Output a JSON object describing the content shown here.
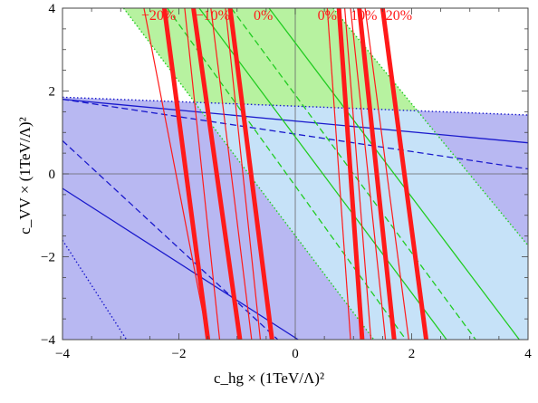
{
  "chart_data": {
    "type": "line",
    "xlabel": "c_hg × (1TeV/Λ)²",
    "ylabel": "c_VV × (1TeV/Λ)²",
    "xlim": [
      -4,
      4
    ],
    "ylim": [
      -4,
      4
    ],
    "x_ticks": [
      -4,
      -2,
      0,
      2,
      4
    ],
    "y_ticks": [
      -4,
      -2,
      0,
      2,
      4
    ],
    "x_tick_labels": [
      "−4",
      "−2",
      "0",
      "2",
      "4"
    ],
    "y_tick_labels": [
      "−4",
      "−2",
      "0",
      "2",
      "4"
    ],
    "grid": "axes-through-origin",
    "colors": {
      "green_band": "#b7f2a0",
      "blue_band": "#b8b8f2",
      "overlap": "#c6e2f8",
      "green_line": "#22cc22",
      "blue_line": "#1a1acc",
      "red_line": "#ff1a1a"
    },
    "regions": [
      {
        "color": "blue",
        "polygon": [
          [
            -4,
            1.85
          ],
          [
            4,
            1.42
          ],
          [
            4,
            -4
          ],
          [
            -4,
            -4
          ]
        ]
      },
      {
        "color": "green",
        "polygon": [
          [
            -2.95,
            4
          ],
          [
            0.65,
            4
          ],
          [
            4,
            -1.73
          ],
          [
            4,
            -4
          ],
          [
            1.35,
            -4
          ]
        ]
      }
    ],
    "series": [
      {
        "color": "blue",
        "style": "solid",
        "points": [
          [
            -4,
            1.8
          ],
          [
            4,
            0.75
          ]
        ]
      },
      {
        "color": "blue",
        "style": "dashed",
        "points": [
          [
            -4,
            1.8
          ],
          [
            4,
            0.12
          ]
        ]
      },
      {
        "color": "blue",
        "style": "dashed",
        "points": [
          [
            -4,
            0.8
          ],
          [
            -0.3,
            -4
          ]
        ]
      },
      {
        "color": "blue",
        "style": "solid",
        "points": [
          [
            -4,
            -0.35
          ],
          [
            0.05,
            -4
          ]
        ]
      },
      {
        "color": "blue",
        "style": "dotted",
        "points": [
          [
            -4,
            1.85
          ],
          [
            4,
            1.42
          ]
        ]
      },
      {
        "color": "blue",
        "style": "dotted",
        "points": [
          [
            -4,
            -1.6
          ],
          [
            -2.9,
            -4
          ]
        ]
      },
      {
        "color": "green",
        "style": "dotted",
        "points": [
          [
            -2.95,
            4
          ],
          [
            1.35,
            -4
          ]
        ]
      },
      {
        "color": "green",
        "style": "dotted",
        "points": [
          [
            0.65,
            4
          ],
          [
            4,
            -1.73
          ]
        ]
      },
      {
        "color": "green",
        "style": "solid",
        "points": [
          [
            -1.65,
            4
          ],
          [
            2.6,
            -4
          ]
        ]
      },
      {
        "color": "green",
        "style": "solid",
        "points": [
          [
            -0.45,
            4
          ],
          [
            3.85,
            -4
          ]
        ]
      },
      {
        "color": "green",
        "style": "dashed",
        "points": [
          [
            -1.1,
            4
          ],
          [
            3.1,
            -4
          ]
        ]
      },
      {
        "color": "green",
        "style": "dashed",
        "points": [
          [
            -2.2,
            4
          ],
          [
            1.9,
            -4
          ]
        ]
      },
      {
        "color": "red",
        "style": "thick",
        "points": [
          [
            -2.25,
            4
          ],
          [
            -1.5,
            -4
          ]
        ]
      },
      {
        "color": "red",
        "style": "thick",
        "points": [
          [
            -1.75,
            4
          ],
          [
            -0.95,
            -4
          ]
        ]
      },
      {
        "color": "red",
        "style": "thick",
        "points": [
          [
            -1.12,
            4
          ],
          [
            -0.4,
            -4
          ]
        ]
      },
      {
        "color": "red",
        "style": "thick",
        "points": [
          [
            0.75,
            4
          ],
          [
            1.15,
            -4
          ]
        ]
      },
      {
        "color": "red",
        "style": "thick",
        "points": [
          [
            1.1,
            4
          ],
          [
            1.7,
            -4
          ]
        ]
      },
      {
        "color": "red",
        "style": "thick",
        "points": [
          [
            1.5,
            4
          ],
          [
            2.25,
            -4
          ]
        ]
      },
      {
        "color": "red",
        "style": "thin",
        "points": [
          [
            -2.6,
            4
          ],
          [
            -1.5,
            -4
          ]
        ]
      },
      {
        "color": "red",
        "style": "thin",
        "points": [
          [
            -1.9,
            4
          ],
          [
            -1.3,
            -4
          ]
        ]
      },
      {
        "color": "red",
        "style": "thin",
        "points": [
          [
            -1.45,
            4
          ],
          [
            -0.75,
            -4
          ]
        ]
      },
      {
        "color": "red",
        "style": "thin",
        "points": [
          [
            -1.2,
            4
          ],
          [
            -0.6,
            -4
          ]
        ]
      },
      {
        "color": "red",
        "style": "thin",
        "points": [
          [
            0.55,
            4
          ],
          [
            0.95,
            -4
          ]
        ]
      },
      {
        "color": "red",
        "style": "thin",
        "points": [
          [
            0.85,
            4
          ],
          [
            1.3,
            -4
          ]
        ]
      },
      {
        "color": "red",
        "style": "thin",
        "points": [
          [
            0.95,
            4
          ],
          [
            1.55,
            -4
          ]
        ]
      },
      {
        "color": "red",
        "style": "thin",
        "points": [
          [
            1.2,
            4
          ],
          [
            1.95,
            -4
          ]
        ]
      }
    ],
    "annotations": [
      {
        "text": "−20%",
        "x": -2.35,
        "y": 3.72,
        "color": "red"
      },
      {
        "text": "−10%",
        "x": -1.42,
        "y": 3.72,
        "color": "red"
      },
      {
        "text": "0%",
        "x": -0.55,
        "y": 3.72,
        "color": "red"
      },
      {
        "text": "0%",
        "x": 0.55,
        "y": 3.72,
        "color": "red"
      },
      {
        "text": "10%",
        "x": 1.18,
        "y": 3.72,
        "color": "red"
      },
      {
        "text": "20%",
        "x": 1.78,
        "y": 3.72,
        "color": "red"
      }
    ]
  }
}
